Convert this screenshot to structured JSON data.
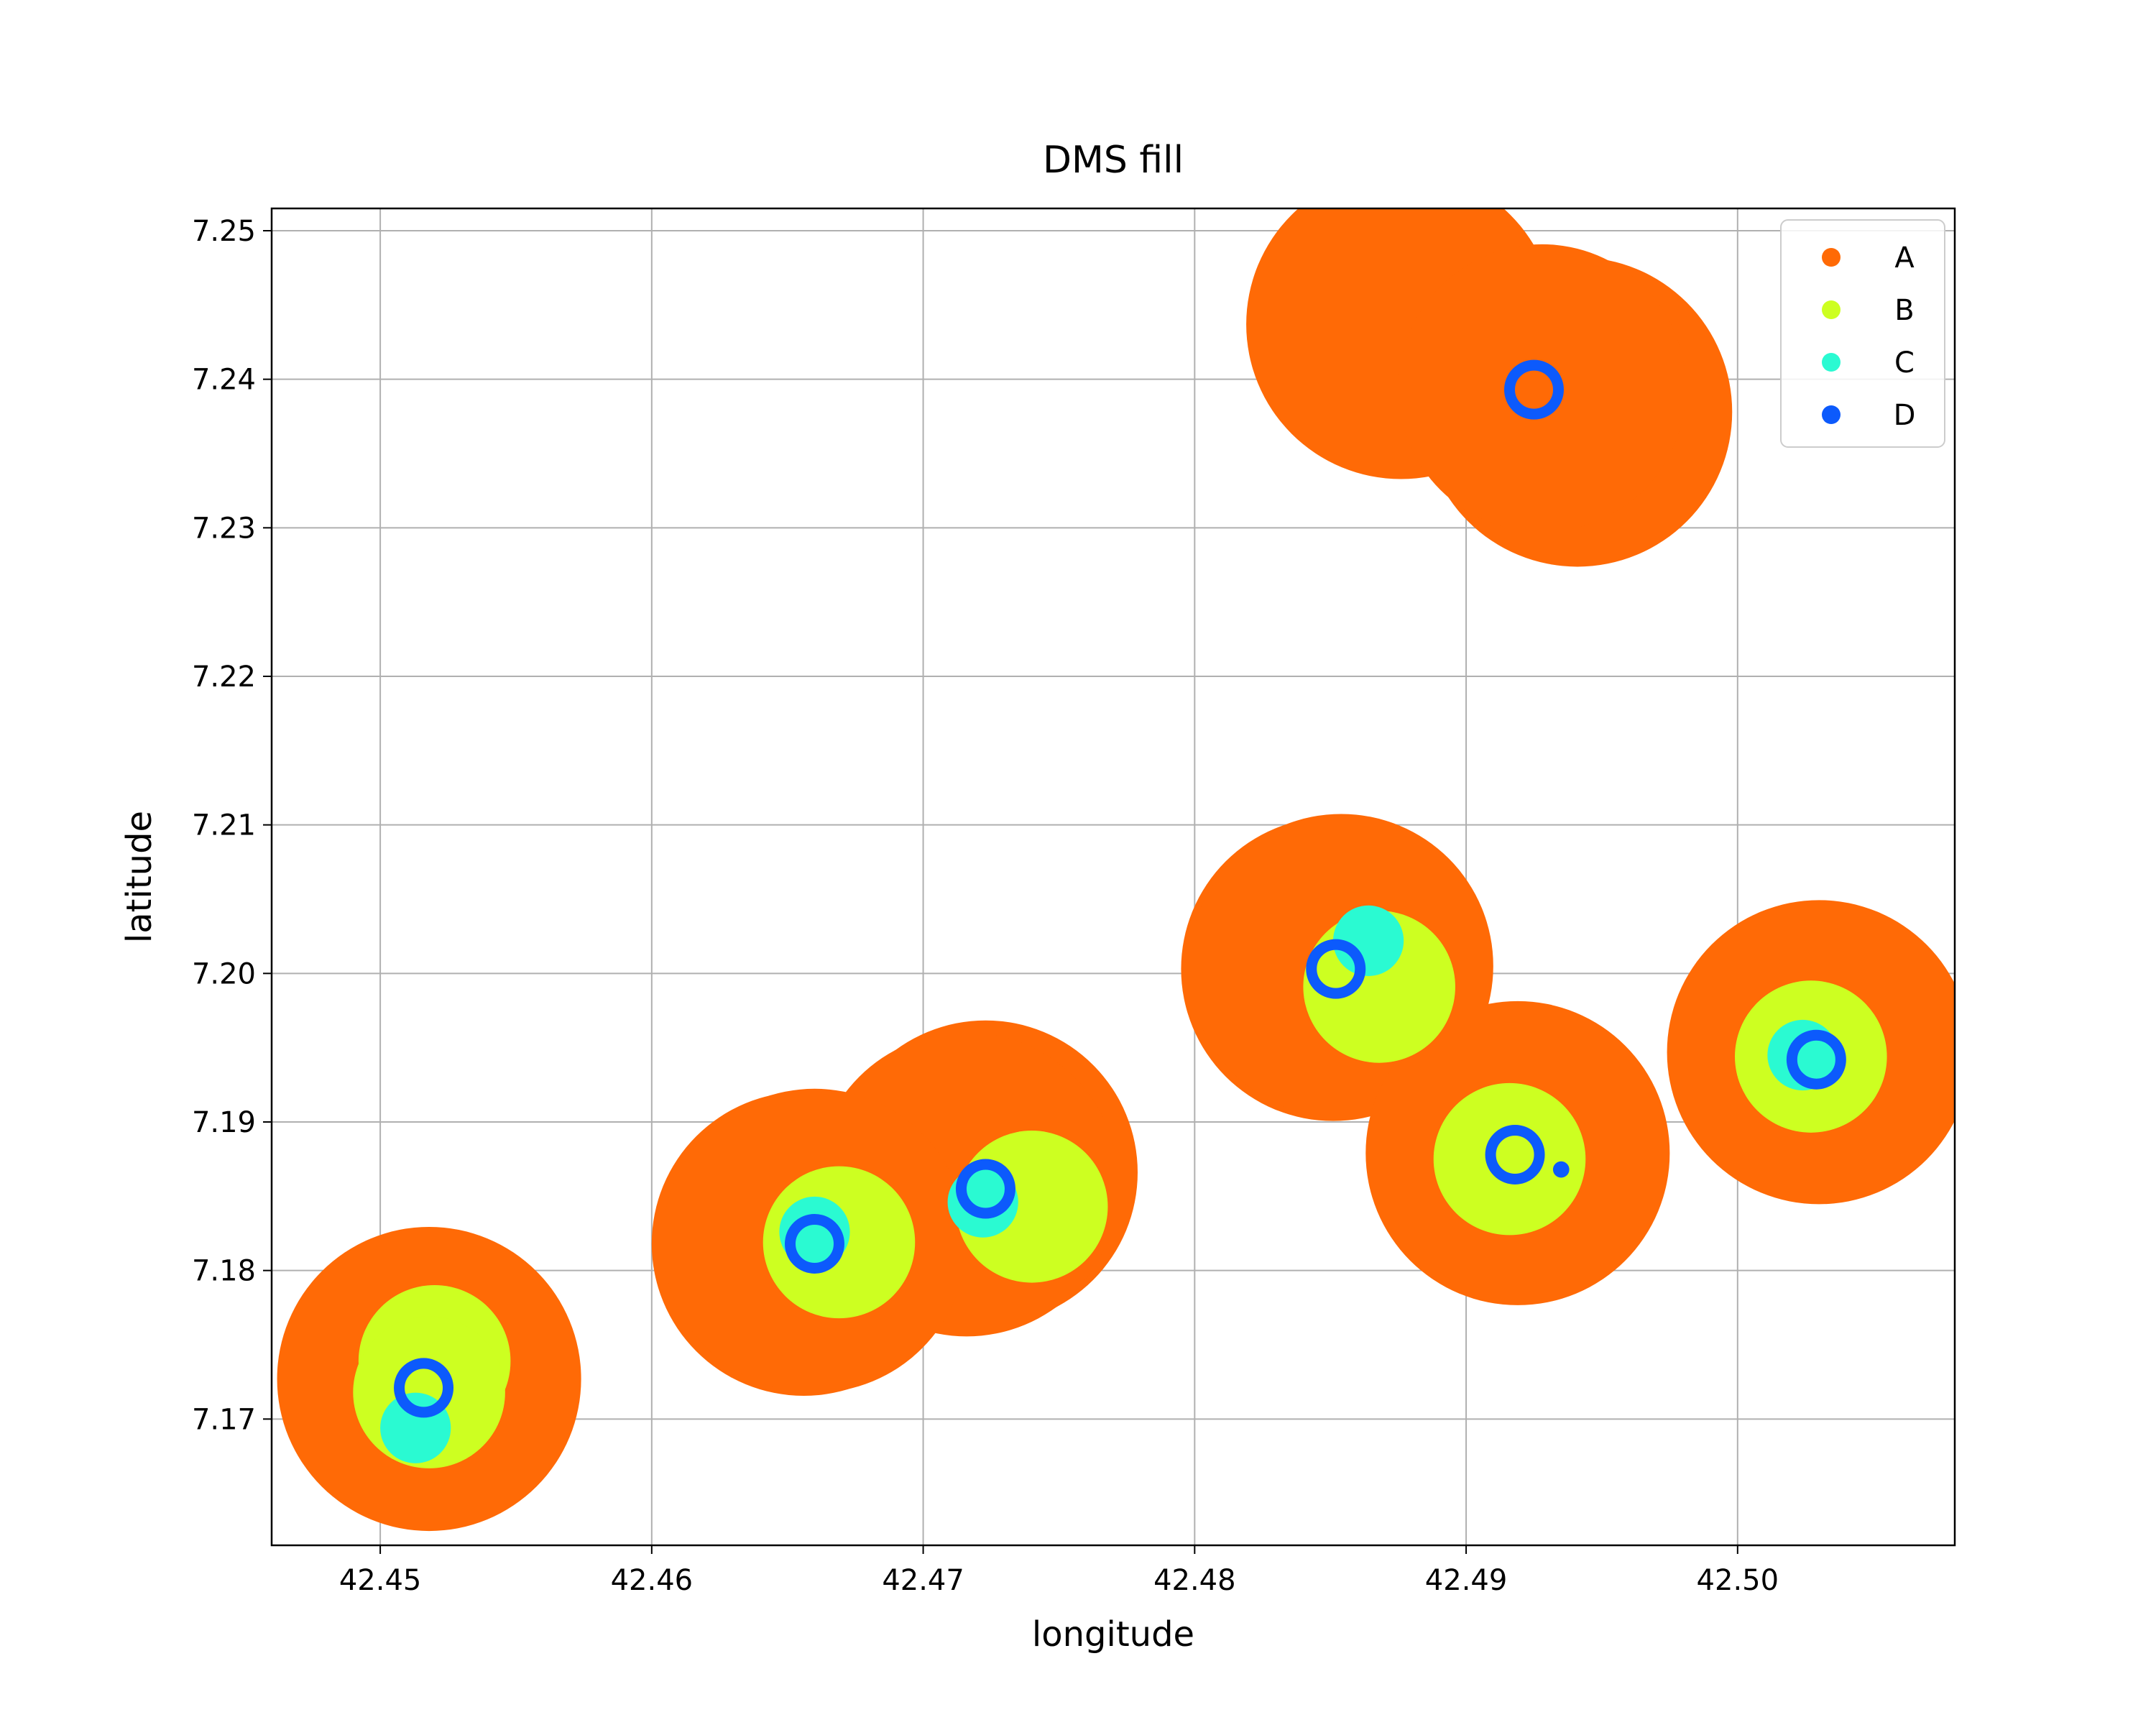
{
  "chart_data": {
    "type": "scatter",
    "title": "DMS fill",
    "xlabel": "longitude",
    "ylabel": "latitude",
    "xlim": [
      42.446,
      42.508
    ],
    "ylim": [
      7.1615,
      7.2515
    ],
    "xticks": [
      "42.45",
      "42.46",
      "42.47",
      "42.48",
      "42.49",
      "42.50"
    ],
    "yticks": [
      "7.17",
      "7.18",
      "7.19",
      "7.20",
      "7.21",
      "7.22",
      "7.23",
      "7.24",
      "7.25"
    ],
    "grid": true,
    "legend_position": "top-right",
    "series": [
      {
        "name": "A",
        "color": "#ff6a06",
        "style": "filled",
        "points": [
          {
            "x": 42.4876,
            "y": 7.2437,
            "r": 0.0057
          },
          {
            "x": 42.4941,
            "y": 7.2378,
            "r": 0.0057
          },
          {
            "x": 42.4928,
            "y": 7.2394,
            "r": 0.0053
          },
          {
            "x": 42.4851,
            "y": 7.2003,
            "r": 0.0056
          },
          {
            "x": 42.4854,
            "y": 7.2005,
            "r": 0.0056
          },
          {
            "x": 42.503,
            "y": 7.1947,
            "r": 0.0056
          },
          {
            "x": 42.4919,
            "y": 7.1879,
            "r": 0.0056
          },
          {
            "x": 42.4723,
            "y": 7.1866,
            "r": 0.0056
          },
          {
            "x": 42.4716,
            "y": 7.1858,
            "r": 0.0056
          },
          {
            "x": 42.4656,
            "y": 7.1818,
            "r": 0.0056
          },
          {
            "x": 42.466,
            "y": 7.182,
            "r": 0.0056
          },
          {
            "x": 42.4518,
            "y": 7.1727,
            "r": 0.0056
          }
        ]
      },
      {
        "name": "B",
        "color": "#cdff21",
        "style": "filled",
        "points": [
          {
            "x": 42.4868,
            "y": 7.1991,
            "r": 0.0028
          },
          {
            "x": 42.5027,
            "y": 7.1944,
            "r": 0.0028
          },
          {
            "x": 42.4916,
            "y": 7.1875,
            "r": 0.0028
          },
          {
            "x": 42.474,
            "y": 7.1843,
            "r": 0.0028
          },
          {
            "x": 42.4669,
            "y": 7.1819,
            "r": 0.0028
          },
          {
            "x": 42.452,
            "y": 7.1739,
            "r": 0.0028
          },
          {
            "x": 42.4518,
            "y": 7.1718,
            "r": 0.0028
          }
        ]
      },
      {
        "name": "C",
        "color": "#2afad2",
        "style": "filled",
        "points": [
          {
            "x": 42.4864,
            "y": 7.2022,
            "r": 0.0013
          },
          {
            "x": 42.5024,
            "y": 7.1945,
            "r": 0.0013
          },
          {
            "x": 42.4722,
            "y": 7.1846,
            "r": 0.0013
          },
          {
            "x": 42.466,
            "y": 7.1826,
            "r": 0.0013
          },
          {
            "x": 42.4513,
            "y": 7.1694,
            "r": 0.0013
          }
        ]
      },
      {
        "name": "D",
        "color": "#0c5afc",
        "style": "ring",
        "points": [
          {
            "x": 42.4925,
            "y": 7.2393,
            "r": 0.0009
          },
          {
            "x": 42.4852,
            "y": 7.2003,
            "r": 0.0009
          },
          {
            "x": 42.5029,
            "y": 7.1942,
            "r": 0.0009
          },
          {
            "x": 42.4918,
            "y": 7.1878,
            "r": 0.0009
          },
          {
            "x": 42.4723,
            "y": 7.1855,
            "r": 0.0009
          },
          {
            "x": 42.466,
            "y": 7.1818,
            "r": 0.0009
          },
          {
            "x": 42.4516,
            "y": 7.1721,
            "r": 0.0009
          }
        ]
      },
      {
        "name": "D",
        "color": "#0c5afc",
        "style": "dot",
        "points": [
          {
            "x": 42.4935,
            "y": 7.1868,
            "r": 0.0003
          }
        ]
      }
    ]
  }
}
